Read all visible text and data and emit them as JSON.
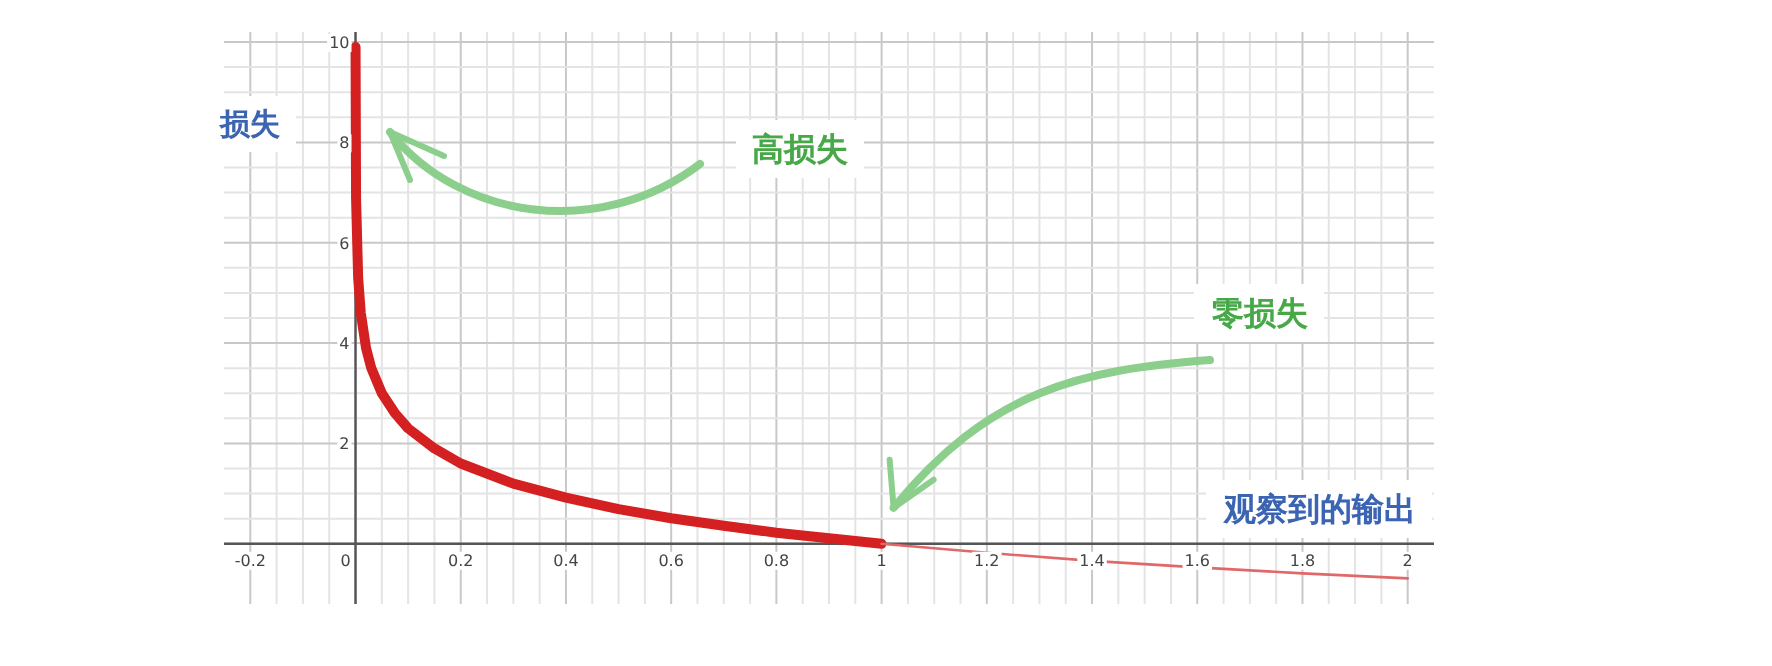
{
  "chart_data": {
    "type": "line",
    "xlabel": "观察到的输出",
    "ylabel": "损失",
    "annotations": [
      "高损失",
      "零损失"
    ],
    "xlim": [
      -0.25,
      2.05
    ],
    "ylim": [
      -1.2,
      10.2
    ],
    "xticks": [
      -0.2,
      0,
      0.2,
      0.4,
      0.6,
      0.8,
      1,
      1.2,
      1.4,
      1.6,
      1.8,
      2
    ],
    "yticks": [
      {
        "value": 0,
        "label": null
      },
      2,
      4,
      6,
      8,
      10
    ],
    "grid": true,
    "marker": "none",
    "line_style": "solid",
    "series": [
      {
        "color": "#d42020",
        "x": [
          5e-05,
          0.001,
          0.005,
          0.01,
          0.02,
          0.03,
          0.05,
          0.075,
          0.1,
          0.15,
          0.2,
          0.3,
          0.4,
          0.5,
          0.6,
          0.7,
          0.8,
          0.9,
          1
        ],
        "values": [
          9.9,
          6.9,
          5.3,
          4.6,
          3.9,
          3.5,
          3.0,
          2.6,
          2.3,
          1.9,
          1.6,
          1.2,
          0.92,
          0.69,
          0.51,
          0.36,
          0.22,
          0.11,
          0
        ]
      },
      {
        "color": "#e06868",
        "x": [
          1,
          1.2,
          1.4,
          1.6,
          1.8,
          2
        ],
        "values": [
          0,
          -0.18,
          -0.34,
          -0.47,
          -0.59,
          -0.69
        ]
      }
    ]
  }
}
